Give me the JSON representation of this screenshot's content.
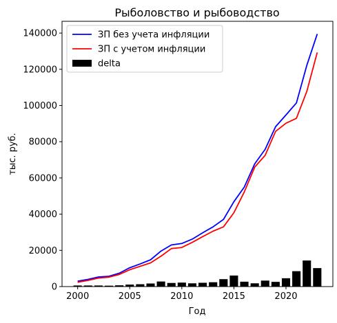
{
  "chart_data": {
    "type": "line",
    "title": "Рыболовство и рыбоводство",
    "xlabel": "Год",
    "ylabel": "тыс. руб.",
    "xlim": [
      1998.5,
      2024.5
    ],
    "ylim": [
      0,
      146500
    ],
    "grid": false,
    "legend_position": "top-left",
    "x_ticks": [
      2000,
      2005,
      2010,
      2015,
      2020
    ],
    "y_ticks": [
      0,
      20000,
      40000,
      60000,
      80000,
      100000,
      120000,
      140000
    ],
    "x": [
      2000,
      2001,
      2002,
      2003,
      2004,
      2005,
      2006,
      2007,
      2008,
      2009,
      2010,
      2011,
      2012,
      2013,
      2014,
      2015,
      2016,
      2017,
      2018,
      2019,
      2020,
      2021,
      2022,
      2023
    ],
    "series": [
      {
        "name": "ЗП без учета инфляции",
        "type": "line",
        "color": "#0000ff",
        "values": [
          3000,
          4000,
          5300,
          5700,
          7400,
          10400,
          12500,
          14800,
          19600,
          23000,
          23800,
          26200,
          29700,
          33000,
          37100,
          46900,
          55000,
          67800,
          75800,
          88300,
          94800,
          101400,
          122200,
          139500
        ]
      },
      {
        "name": "ЗП с учетом инфляции",
        "type": "line",
        "color": "#ff0000",
        "values": [
          2400,
          3400,
          4700,
          5200,
          6700,
          9300,
          11200,
          13100,
          16800,
          21000,
          21600,
          24400,
          27600,
          30600,
          33000,
          40800,
          52300,
          66000,
          72500,
          85700,
          90200,
          92900,
          107800,
          129300
        ]
      },
      {
        "name": "delta",
        "type": "bar",
        "color": "#000000",
        "values": [
          600,
          600,
          600,
          500,
          700,
          1100,
          1300,
          1700,
          2800,
          2000,
          2200,
          1800,
          2100,
          2400,
          4100,
          6100,
          2700,
          1800,
          3300,
          2600,
          4600,
          8500,
          14400,
          10200
        ]
      }
    ]
  }
}
